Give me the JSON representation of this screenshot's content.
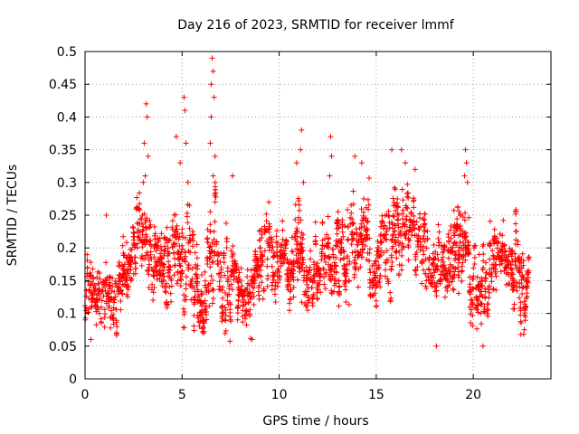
{
  "chart_data": {
    "type": "scatter",
    "title": "Day 216 of 2023, SRMTID for receiver lmmf",
    "xlabel": "GPS time / hours",
    "ylabel": "SRMTID / TECUs",
    "xlim": [
      0,
      24
    ],
    "ylim": [
      0,
      0.5
    ],
    "xticks": [
      "0",
      "5",
      "10",
      "15",
      "20"
    ],
    "yticks": [
      "0",
      "0.05",
      "0.1",
      "0.15",
      "0.2",
      "0.25",
      "0.3",
      "0.35",
      "0.4",
      "0.45",
      "0.5"
    ],
    "grid": true,
    "marker": "+",
    "marker_color": "#ff0000",
    "series_name": "SRMTID",
    "trend": [
      [
        0.0,
        0.13,
        0.03
      ],
      [
        0.5,
        0.11,
        0.03
      ],
      [
        1.0,
        0.14,
        0.03
      ],
      [
        1.5,
        0.12,
        0.03
      ],
      [
        2.0,
        0.15,
        0.04
      ],
      [
        2.5,
        0.2,
        0.05
      ],
      [
        3.0,
        0.24,
        0.06
      ],
      [
        3.5,
        0.19,
        0.04
      ],
      [
        4.0,
        0.17,
        0.04
      ],
      [
        4.5,
        0.2,
        0.06
      ],
      [
        5.0,
        0.18,
        0.05
      ],
      [
        5.5,
        0.15,
        0.05
      ],
      [
        6.0,
        0.14,
        0.05
      ],
      [
        6.5,
        0.22,
        0.08
      ],
      [
        7.0,
        0.14,
        0.05
      ],
      [
        7.5,
        0.16,
        0.05
      ],
      [
        8.0,
        0.11,
        0.03
      ],
      [
        8.5,
        0.13,
        0.03
      ],
      [
        9.0,
        0.17,
        0.04
      ],
      [
        9.5,
        0.2,
        0.04
      ],
      [
        10.0,
        0.19,
        0.04
      ],
      [
        10.5,
        0.17,
        0.04
      ],
      [
        11.0,
        0.19,
        0.05
      ],
      [
        11.5,
        0.15,
        0.04
      ],
      [
        12.0,
        0.17,
        0.04
      ],
      [
        12.5,
        0.18,
        0.05
      ],
      [
        13.0,
        0.17,
        0.04
      ],
      [
        13.5,
        0.2,
        0.05
      ],
      [
        14.0,
        0.18,
        0.05
      ],
      [
        14.5,
        0.2,
        0.05
      ],
      [
        15.0,
        0.16,
        0.04
      ],
      [
        15.5,
        0.2,
        0.05
      ],
      [
        16.0,
        0.2,
        0.05
      ],
      [
        16.5,
        0.23,
        0.05
      ],
      [
        17.0,
        0.23,
        0.05
      ],
      [
        17.5,
        0.19,
        0.04
      ],
      [
        18.0,
        0.16,
        0.04
      ],
      [
        18.5,
        0.17,
        0.04
      ],
      [
        19.0,
        0.2,
        0.05
      ],
      [
        19.5,
        0.22,
        0.05
      ],
      [
        20.0,
        0.13,
        0.04
      ],
      [
        20.5,
        0.15,
        0.04
      ],
      [
        21.0,
        0.18,
        0.04
      ],
      [
        21.5,
        0.17,
        0.04
      ],
      [
        22.0,
        0.15,
        0.04
      ],
      [
        22.5,
        0.14,
        0.04
      ],
      [
        23.0,
        0.15,
        0.04
      ]
    ],
    "spikes": [
      [
        3.15,
        0.42
      ],
      [
        3.2,
        0.4
      ],
      [
        3.05,
        0.36
      ],
      [
        3.25,
        0.34
      ],
      [
        3.1,
        0.31
      ],
      [
        5.1,
        0.43
      ],
      [
        5.15,
        0.41
      ],
      [
        5.2,
        0.36
      ],
      [
        4.7,
        0.37
      ],
      [
        4.9,
        0.33
      ],
      [
        5.3,
        0.3
      ],
      [
        6.55,
        0.49
      ],
      [
        6.6,
        0.47
      ],
      [
        6.5,
        0.45
      ],
      [
        6.65,
        0.43
      ],
      [
        6.5,
        0.4
      ],
      [
        6.45,
        0.36
      ],
      [
        6.7,
        0.34
      ],
      [
        6.6,
        0.31
      ],
      [
        11.15,
        0.38
      ],
      [
        11.1,
        0.35
      ],
      [
        10.9,
        0.33
      ],
      [
        11.25,
        0.3
      ],
      [
        12.65,
        0.37
      ],
      [
        12.7,
        0.34
      ],
      [
        12.6,
        0.31
      ],
      [
        13.9,
        0.34
      ],
      [
        14.25,
        0.33
      ],
      [
        15.8,
        0.35
      ],
      [
        16.3,
        0.35
      ],
      [
        16.5,
        0.33
      ],
      [
        17.0,
        0.32
      ],
      [
        19.6,
        0.35
      ],
      [
        19.65,
        0.33
      ],
      [
        19.55,
        0.31
      ],
      [
        19.7,
        0.3
      ],
      [
        7.6,
        0.31
      ],
      [
        3.0,
        0.3
      ],
      [
        1.1,
        0.25
      ],
      [
        18.1,
        0.05
      ],
      [
        20.5,
        0.05
      ],
      [
        0.3,
        0.06
      ],
      [
        8.6,
        0.06
      ]
    ]
  }
}
